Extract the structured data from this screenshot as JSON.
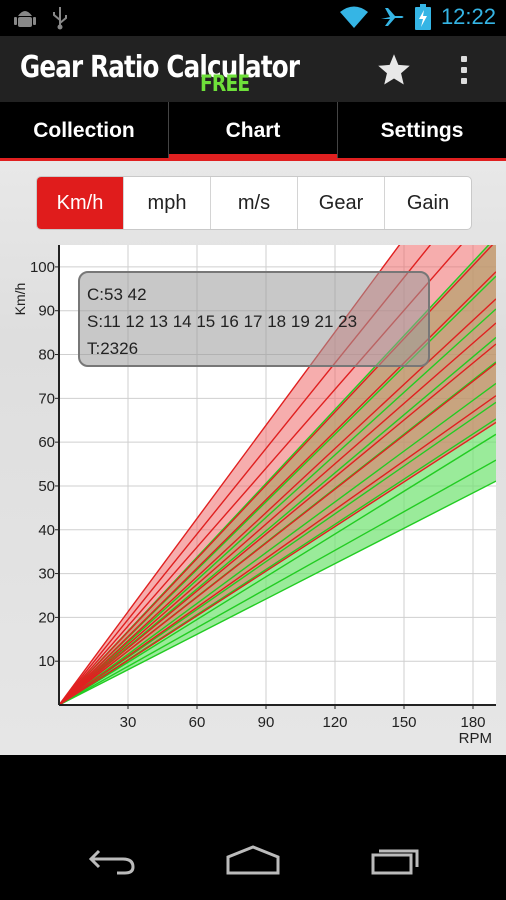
{
  "status_bar": {
    "time": "12:22",
    "icons": [
      "android-debug-icon",
      "usb-icon",
      "wifi-icon",
      "airplane-icon",
      "battery-charging-icon"
    ]
  },
  "action_bar": {
    "title": "Gear Ratio Calculator",
    "badge": "FREE",
    "actions": [
      "star-icon",
      "overflow-menu-icon"
    ]
  },
  "tabs": [
    {
      "label": "Collection",
      "active": false
    },
    {
      "label": "Chart",
      "active": true
    },
    {
      "label": "Settings",
      "active": false
    }
  ],
  "units": [
    {
      "label": "Km/h",
      "active": true
    },
    {
      "label": "mph",
      "active": false
    },
    {
      "label": "m/s",
      "active": false
    },
    {
      "label": "Gear",
      "active": false
    },
    {
      "label": "Gain",
      "active": false
    }
  ],
  "info_box": {
    "chainrings": "C:53 42",
    "sprockets": "S:11 12 13 14 15 16 17 18 19 21 23",
    "tire": "T:2326"
  },
  "colors": {
    "accent": "#e02020",
    "chainring_large": "#e02020",
    "chainring_small": "#22cc22",
    "fill_large": "#ef6a6a",
    "fill_small": "#6fe36f"
  },
  "chart_data": {
    "type": "line",
    "xlabel": "RPM",
    "ylabel": "Km/h",
    "xlim": [
      0,
      190
    ],
    "ylim": [
      0,
      105
    ],
    "xticks": [
      30,
      60,
      90,
      120,
      150,
      180
    ],
    "yticks": [
      10,
      20,
      30,
      40,
      50,
      60,
      70,
      80,
      90,
      100
    ],
    "x": [
      0,
      190
    ],
    "series": [
      {
        "group": "C:53",
        "sprocket": 11,
        "values": [
          0,
          134.8
        ]
      },
      {
        "group": "C:53",
        "sprocket": 12,
        "values": [
          0,
          123.6
        ]
      },
      {
        "group": "C:53",
        "sprocket": 13,
        "values": [
          0,
          114.1
        ]
      },
      {
        "group": "C:53",
        "sprocket": 14,
        "values": [
          0,
          105.9
        ]
      },
      {
        "group": "C:53",
        "sprocket": 15,
        "values": [
          0,
          98.9
        ]
      },
      {
        "group": "C:53",
        "sprocket": 16,
        "values": [
          0,
          92.7
        ]
      },
      {
        "group": "C:53",
        "sprocket": 17,
        "values": [
          0,
          87.2
        ]
      },
      {
        "group": "C:53",
        "sprocket": 18,
        "values": [
          0,
          82.4
        ]
      },
      {
        "group": "C:53",
        "sprocket": 19,
        "values": [
          0,
          78.0
        ]
      },
      {
        "group": "C:53",
        "sprocket": 21,
        "values": [
          0,
          70.6
        ]
      },
      {
        "group": "C:53",
        "sprocket": 23,
        "values": [
          0,
          64.5
        ]
      },
      {
        "group": "C:42",
        "sprocket": 11,
        "values": [
          0,
          106.8
        ]
      },
      {
        "group": "C:42",
        "sprocket": 12,
        "values": [
          0,
          97.9
        ]
      },
      {
        "group": "C:42",
        "sprocket": 13,
        "values": [
          0,
          90.4
        ]
      },
      {
        "group": "C:42",
        "sprocket": 14,
        "values": [
          0,
          83.9
        ]
      },
      {
        "group": "C:42",
        "sprocket": 15,
        "values": [
          0,
          78.3
        ]
      },
      {
        "group": "C:42",
        "sprocket": 16,
        "values": [
          0,
          73.4
        ]
      },
      {
        "group": "C:42",
        "sprocket": 17,
        "values": [
          0,
          69.1
        ]
      },
      {
        "group": "C:42",
        "sprocket": 18,
        "values": [
          0,
          65.3
        ]
      },
      {
        "group": "C:42",
        "sprocket": 19,
        "values": [
          0,
          61.8
        ]
      },
      {
        "group": "C:42",
        "sprocket": 21,
        "values": [
          0,
          55.9
        ]
      },
      {
        "group": "C:42",
        "sprocket": 23,
        "values": [
          0,
          51.1
        ]
      }
    ]
  },
  "nav_bar": {
    "buttons": [
      "back-icon",
      "home-icon",
      "recent-apps-icon"
    ]
  }
}
